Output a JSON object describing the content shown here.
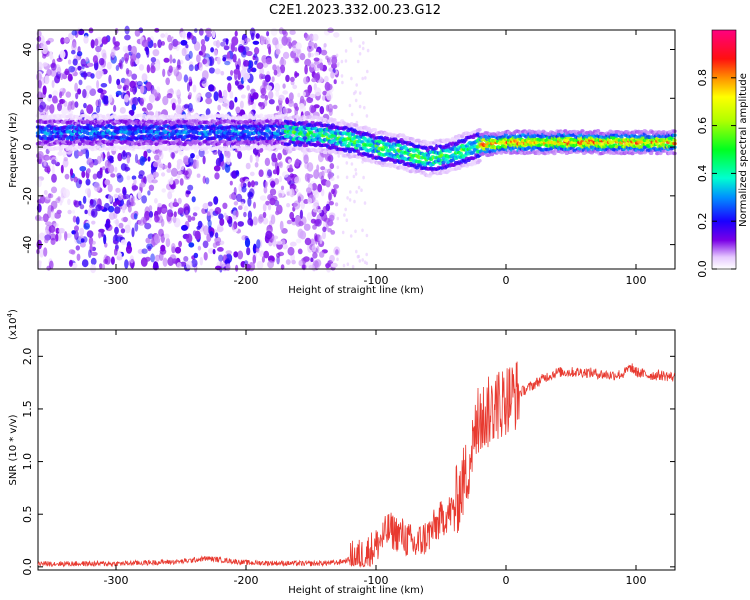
{
  "title": "C2E1.2023.332.00.23.G12",
  "chart_data": [
    {
      "type": "heatmap",
      "xlabel": "Height of straight line (km)",
      "ylabel": "Frequency (Hz)",
      "xlim": [
        -360,
        130
      ],
      "ylim": [
        -50,
        48
      ],
      "xticks": [
        -300,
        -200,
        -100,
        0,
        100
      ],
      "yticks": [
        -40,
        -20,
        0,
        20,
        40
      ],
      "colorbar": {
        "label": "Normalized spectral amplitude",
        "range": [
          0,
          1
        ],
        "ticks": [
          0.0,
          0.2,
          0.4,
          0.6,
          0.8
        ],
        "tick_labels": [
          "0.0",
          "0.2",
          "0.4",
          "0.6",
          "0.8"
        ],
        "colormap": "rainbow"
      },
      "trend": [
        {
          "x": -360,
          "y": 6
        },
        {
          "x": -250,
          "y": 6
        },
        {
          "x": -170,
          "y": 6
        },
        {
          "x": -140,
          "y": 5
        },
        {
          "x": -120,
          "y": 3
        },
        {
          "x": -100,
          "y": 0
        },
        {
          "x": -80,
          "y": -2
        },
        {
          "x": -60,
          "y": -5
        },
        {
          "x": -40,
          "y": -3
        },
        {
          "x": -20,
          "y": 1
        },
        {
          "x": 0,
          "y": 2
        },
        {
          "x": 50,
          "y": 2
        },
        {
          "x": 100,
          "y": 2
        },
        {
          "x": 130,
          "y": 2
        }
      ]
    },
    {
      "type": "line",
      "xlabel": "Height of straight line (km)",
      "ylabel": "SNR (10 * v/v)",
      "y_multiplier": "(x10",
      "y_multiplier_exp": "4",
      "y_multiplier_close": ")",
      "xlim": [
        -360,
        130
      ],
      "ylim": [
        -0.03,
        2.25
      ],
      "xticks": [
        -300,
        -200,
        -100,
        0,
        100
      ],
      "yticks": [
        0.0,
        0.5,
        1.0,
        1.5,
        2.0
      ],
      "ytick_labels": [
        "0.0",
        "0.5",
        "1.0",
        "1.5",
        "2.0"
      ],
      "color": "#e83a30",
      "series": [
        {
          "x": [
            -360,
            -300,
            -250,
            -230,
            -200,
            -150,
            -130,
            -110,
            -100,
            -90,
            -80,
            -70,
            -60,
            -50,
            -40,
            -30,
            -25,
            -20,
            -15,
            -10,
            -5,
            0,
            10,
            20,
            30,
            40,
            60,
            80,
            90,
            96,
            100,
            110,
            120,
            130
          ],
          "values": [
            0.03,
            0.03,
            0.05,
            0.08,
            0.04,
            0.03,
            0.04,
            0.1,
            0.2,
            0.35,
            0.3,
            0.2,
            0.3,
            0.45,
            0.55,
            0.9,
            1.2,
            1.4,
            1.45,
            1.5,
            1.55,
            1.6,
            1.65,
            1.72,
            1.8,
            1.85,
            1.85,
            1.82,
            1.83,
            1.9,
            1.85,
            1.82,
            1.82,
            1.8
          ]
        }
      ]
    }
  ]
}
